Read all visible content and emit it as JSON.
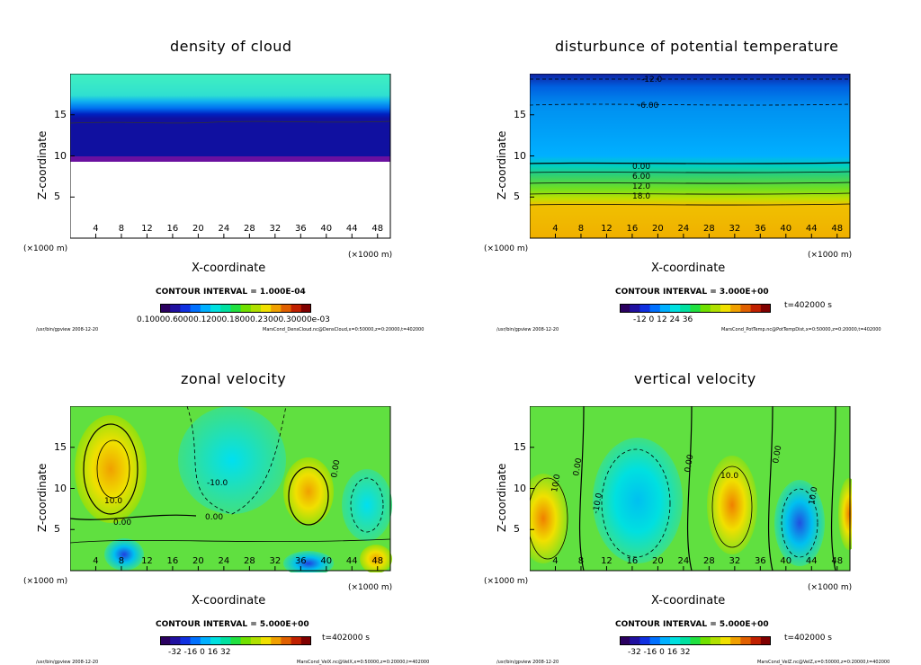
{
  "colorbar_colors": [
    "#2a0060",
    "#2010a0",
    "#1030e0",
    "#0070ff",
    "#00b0ff",
    "#00e0e0",
    "#00e0a0",
    "#20e040",
    "#70e000",
    "#b0e000",
    "#f0e000",
    "#f0a000",
    "#e06000",
    "#c02000",
    "#800000"
  ],
  "panels": [
    {
      "title": "density of cloud",
      "ylabel": "Z-coordinate",
      "xlabel": "X-coordinate",
      "xunit": "(×1000 m)",
      "yunit": "(×1000 m)",
      "contour_interval": "CONTOUR INTERVAL = 1.000E-04",
      "time_label": "",
      "colorbar_labels": "0.10000.60000.12000.18000.23000.30000e-03",
      "footer_left": "/usr/bin/gpview    2008-12-20",
      "footer_right": "MarsCond_DensCloud.nc@DensCloud,x=0:50000,z=0:20000,t=402000",
      "contour_labels": []
    },
    {
      "title": "disturbunce of potential temperature",
      "ylabel": "Z-coordinate",
      "xlabel": "X-coordinate",
      "xunit": "(×1000 m)",
      "yunit": "(×1000 m)",
      "contour_interval": "CONTOUR INTERVAL = 3.000E+00",
      "time_label": "t=402000  s",
      "colorbar_labels": "-12    0    12    24    36",
      "footer_left": "/usr/bin/gpview    2008-12-20",
      "footer_right": "MarsCond_PotTemp.nc@PotTempDist,x=0:50000,z=0:20000,t=402000",
      "contour_labels": [
        "-12.0",
        "-6.00",
        "0.00",
        "6.00",
        "12.0",
        "18.0"
      ]
    },
    {
      "title": "zonal velocity",
      "ylabel": "Z-coordinate",
      "xlabel": "X-coordinate",
      "xunit": "(×1000 m)",
      "yunit": "(×1000 m)",
      "contour_interval": "CONTOUR INTERVAL = 5.000E+00",
      "time_label": "t=402000  s",
      "colorbar_labels": "-32   -16    0    16    32",
      "footer_left": "/usr/bin/gpview    2008-12-20",
      "footer_right": "MarsCond_VelX.nc@VelX,x=0:50000,z=0:20000,t=402000",
      "contour_labels": [
        "10.0",
        "0.00",
        "-10.0",
        "0.00",
        "0.00"
      ]
    },
    {
      "title": "vertical velocity",
      "ylabel": "Z-coordinate",
      "xlabel": "X-coordinate",
      "xunit": "(×1000 m)",
      "yunit": "(×1000 m)",
      "contour_interval": "CONTOUR INTERVAL = 5.000E+00",
      "time_label": "t=402000  s",
      "colorbar_labels": "-32   -16    0    16    32",
      "footer_left": "/usr/bin/gpview    2008-12-20",
      "footer_right": "MarsCond_VelZ.nc@VelZ,x=0:50000,z=0:20000,t=402000",
      "contour_labels": [
        "10.0",
        "-10.0",
        "0.00",
        "10.0",
        "0.00",
        "10.0",
        "0.00"
      ]
    }
  ],
  "chart_data": [
    {
      "type": "heatmap",
      "title": "density of cloud",
      "xlabel": "X-coordinate",
      "ylabel": "Z-coordinate",
      "xlim": [
        0,
        50
      ],
      "ylim": [
        0,
        20
      ],
      "x_ticks": [
        4,
        8,
        12,
        16,
        20,
        24,
        28,
        32,
        36,
        40,
        44,
        48
      ],
      "y_ticks": [
        5,
        10,
        15
      ],
      "contour_interval": 0.0001,
      "notes": "cloud layer ~9 to 20 km, highest density (dark blue/purple) near 9-10 km, none below ~9 km"
    },
    {
      "type": "heatmap",
      "title": "disturbunce of potential temperature",
      "xlabel": "X-coordinate",
      "ylabel": "Z-coordinate",
      "xlim": [
        0,
        50
      ],
      "ylim": [
        0,
        20
      ],
      "x_ticks": [
        4,
        8,
        12,
        16,
        20,
        24,
        28,
        32,
        36,
        40,
        44,
        48
      ],
      "y_ticks": [
        5,
        10,
        15
      ],
      "contour_interval": 3.0,
      "colorbar_ticks": [
        -12,
        0,
        12,
        24,
        36
      ],
      "contours": [
        {
          "label": "-12.0",
          "z": 19
        },
        {
          "label": "-6.00",
          "z": 16
        },
        {
          "label": "0.00",
          "z": 8.5
        },
        {
          "label": "6.00",
          "z": 7.5
        },
        {
          "label": "12.0",
          "z": 6.5
        },
        {
          "label": "18.0",
          "z": 5.5
        }
      ]
    },
    {
      "type": "heatmap",
      "title": "zonal velocity",
      "xlabel": "X-coordinate",
      "ylabel": "Z-coordinate",
      "xlim": [
        0,
        50
      ],
      "ylim": [
        0,
        20
      ],
      "x_ticks": [
        4,
        8,
        12,
        16,
        20,
        24,
        28,
        32,
        36,
        40,
        44,
        48
      ],
      "y_ticks": [
        5,
        10,
        15
      ],
      "contour_interval": 5.0,
      "colorbar_ticks": [
        -32,
        -16,
        0,
        16,
        32
      ]
    },
    {
      "type": "heatmap",
      "title": "vertical velocity",
      "xlabel": "X-coordinate",
      "ylabel": "Z-coordinate",
      "xlim": [
        0,
        50
      ],
      "ylim": [
        0,
        20
      ],
      "x_ticks": [
        4,
        8,
        12,
        16,
        20,
        24,
        28,
        32,
        36,
        40,
        44,
        48
      ],
      "y_ticks": [
        5,
        10,
        15
      ],
      "contour_interval": 5.0,
      "colorbar_ticks": [
        -32,
        -16,
        0,
        16,
        32
      ]
    }
  ]
}
